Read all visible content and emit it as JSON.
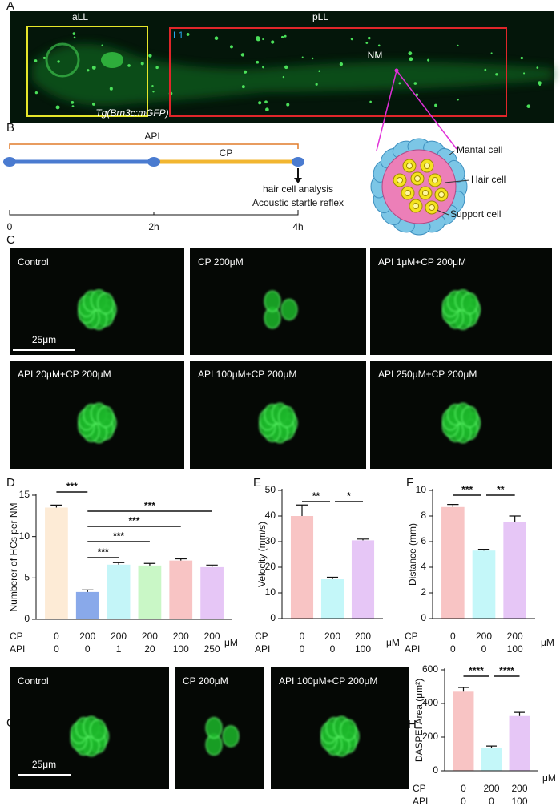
{
  "panel_a": {
    "label": "A",
    "image_labels": {
      "all": "aLL",
      "pll": "pLL",
      "l1": "L1",
      "nm": "NM",
      "line": "Tg(Brn3c:mGFP)"
    },
    "cell_labels": [
      "Mantal cell",
      "Hair cell",
      "Support cell"
    ]
  },
  "panel_b": {
    "label": "B",
    "api": "API",
    "cp": "CP",
    "outcomes": [
      "hair cell analysis",
      "Acoustic startle reflex"
    ],
    "timeline": [
      "0",
      "2h",
      "4h"
    ]
  },
  "panel_c": {
    "label": "C",
    "images": [
      "Control",
      "CP 200μM",
      "API 1μM+CP 200μM",
      "API 20μM+CP 200μM",
      "API 100μM+CP 200μM",
      "API 250μM+CP 200μM"
    ],
    "scale_bar": "25μm"
  },
  "panel_g": {
    "label": "G",
    "images": [
      "Control",
      "CP 200μM",
      "API 100μM+CP 200μM"
    ],
    "scale_bar": "25μm"
  },
  "chart_data": [
    {
      "type": "bar",
      "panel_label": "D",
      "y_label": "Numberer of HCs per NM",
      "ylim": [
        0,
        15
      ],
      "yticks": [
        0,
        5,
        10,
        15
      ],
      "values": [
        13.5,
        3.3,
        6.6,
        6.5,
        7.1,
        6.3
      ],
      "errors": [
        0.3,
        0.25,
        0.25,
        0.25,
        0.2,
        0.25
      ],
      "colors": [
        "#fdebd6",
        "#89a9ea",
        "#c4f5f8",
        "#c9f7c6",
        "#f8c4c4",
        "#e6c6f6"
      ],
      "category_rows": [
        {
          "name": "CP",
          "labels": [
            0,
            200,
            200,
            200,
            200,
            200
          ]
        },
        {
          "name": "API",
          "labels": [
            0,
            0,
            1,
            20,
            100,
            250
          ]
        }
      ],
      "category_unit": "μM",
      "significance": [
        {
          "bars": [
            0,
            1
          ],
          "label": "***"
        },
        {
          "bars": [
            1,
            5
          ],
          "label": "***"
        },
        {
          "bars": [
            1,
            4
          ],
          "label": "***"
        },
        {
          "bars": [
            1,
            3
          ],
          "label": "***"
        },
        {
          "bars": [
            1,
            2
          ],
          "label": "***"
        }
      ]
    },
    {
      "type": "bar",
      "panel_label": "E",
      "y_label": "Velocity (mm/s)",
      "ylim": [
        0,
        50
      ],
      "yticks": [
        0,
        10,
        20,
        30,
        40,
        50
      ],
      "values": [
        40,
        15.3,
        30.5
      ],
      "errors": [
        4.3,
        0.8,
        0.5
      ],
      "colors": [
        "#f8c4c4",
        "#c4f7f9",
        "#e6c6f6"
      ],
      "category_rows": [
        {
          "name": "CP",
          "labels": [
            0,
            200,
            200
          ]
        },
        {
          "name": "API",
          "labels": [
            0,
            0,
            100
          ]
        }
      ],
      "category_unit": "μM",
      "significance": [
        {
          "bars": [
            0,
            1
          ],
          "label": "**"
        },
        {
          "bars": [
            1,
            2
          ],
          "label": "*"
        }
      ]
    },
    {
      "type": "bar",
      "panel_label": "F",
      "y_label": "Distance (mm)",
      "ylim": [
        0,
        10
      ],
      "yticks": [
        0,
        2,
        4,
        6,
        8,
        10
      ],
      "values": [
        8.7,
        5.3,
        7.5
      ],
      "errors": [
        0.2,
        0.1,
        0.5
      ],
      "colors": [
        "#f8c4c4",
        "#c4f7f9",
        "#e6c6f6"
      ],
      "category_rows": [
        {
          "name": "CP",
          "labels": [
            0,
            200,
            200
          ]
        },
        {
          "name": "API",
          "labels": [
            0,
            0,
            100
          ]
        }
      ],
      "category_unit": "μM",
      "significance": [
        {
          "bars": [
            0,
            1
          ],
          "label": "***"
        },
        {
          "bars": [
            1,
            2
          ],
          "label": "**"
        }
      ]
    },
    {
      "type": "bar",
      "panel_label": "H",
      "y_label": "DASPEI Area (μm²)",
      "ylim": [
        0,
        600
      ],
      "yticks": [
        0,
        200,
        400,
        600
      ],
      "values": [
        470,
        135,
        325
      ],
      "errors": [
        25,
        12,
        22
      ],
      "colors": [
        "#f8c4c4",
        "#c4f7f9",
        "#e6c6f6"
      ],
      "category_rows": [
        {
          "name": "CP",
          "labels": [
            0,
            200,
            200
          ]
        },
        {
          "name": "API",
          "labels": [
            0,
            0,
            100
          ]
        }
      ],
      "category_unit": "μM",
      "significance": [
        {
          "bars": [
            0,
            1
          ],
          "label": "****"
        },
        {
          "bars": [
            1,
            2
          ],
          "label": "****"
        }
      ]
    }
  ]
}
